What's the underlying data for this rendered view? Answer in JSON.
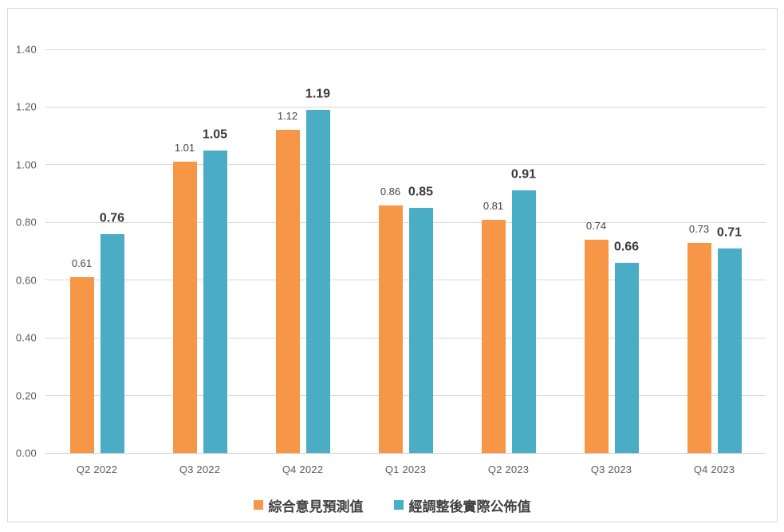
{
  "chart_data": {
    "type": "bar",
    "title": "",
    "xlabel": "",
    "ylabel": "",
    "categories": [
      "Q2 2022",
      "Q3 2022",
      "Q4 2022",
      "Q1 2023",
      "Q2 2023",
      "Q3 2023",
      "Q4 2023"
    ],
    "series": [
      {
        "name": "綜合意見預測值",
        "color": "#F79646",
        "values": [
          0.61,
          1.01,
          1.12,
          0.86,
          0.81,
          0.74,
          0.73
        ],
        "label_weight": "normal",
        "label_size": 13
      },
      {
        "name": "經調整後實際公佈值",
        "color": "#4BACC6",
        "values": [
          0.76,
          1.05,
          1.19,
          0.85,
          0.91,
          0.66,
          0.71
        ],
        "label_weight": "bold",
        "label_size": 16
      }
    ],
    "ylim": [
      0,
      1.4
    ],
    "ytick_step": 0.2,
    "yticks": [
      "0.00",
      "0.20",
      "0.40",
      "0.60",
      "0.80",
      "1.00",
      "1.20",
      "1.40"
    ],
    "grid": true,
    "legend_position": "bottom",
    "value_label_decimals": 2
  },
  "colors": {
    "background": "#FFFFFF",
    "frame_border": "#D9D9D9",
    "grid": "#D9D9D9",
    "axis_text": "#595959",
    "value_label": "#444444",
    "value_label_bold": "#3A3A3A"
  }
}
